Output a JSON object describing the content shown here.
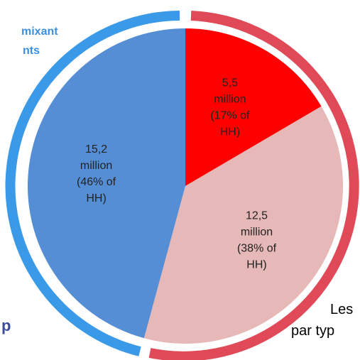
{
  "chart_data": {
    "type": "pie",
    "categories": [
      "5,5 million",
      "12,5 million",
      "15,2 million"
    ],
    "values": [
      5.5,
      12.5,
      15.2
    ],
    "value_labels": [
      [
        "5,5",
        "million",
        "(17% of",
        "HH)"
      ],
      [
        "12,5",
        "million",
        "(38% of",
        "HH)"
      ],
      [
        "15,2",
        "million",
        "(46% of",
        "HH)"
      ]
    ],
    "colors": [
      "#ff0000",
      "#e6b8b7",
      "#558ed5"
    ],
    "annotations": [
      [
        "mixant",
        "nts"
      ],
      [
        "Les",
        "par typ"
      ],
      [
        "p"
      ]
    ]
  }
}
